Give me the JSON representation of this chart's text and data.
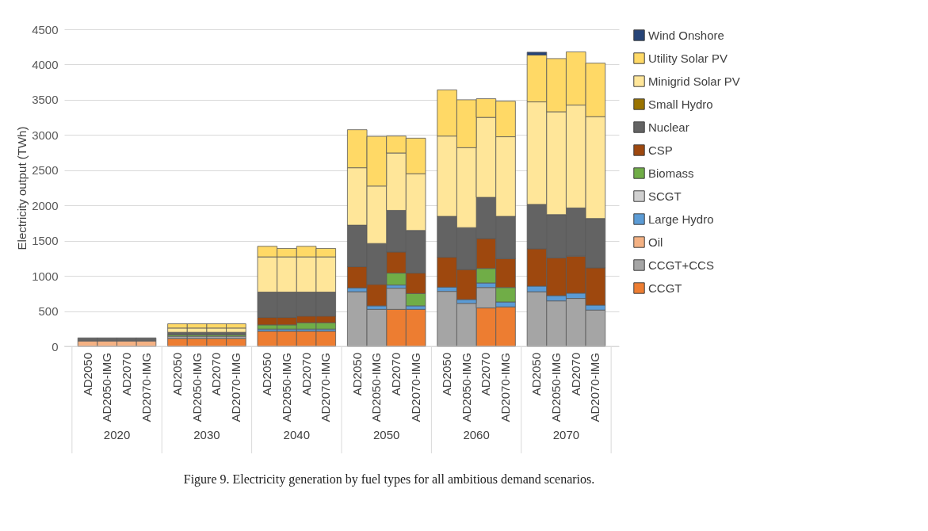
{
  "chart_data": {
    "type": "bar",
    "stacked": true,
    "ylabel": "Electricity output (TWh)",
    "categories": [
      "AD2050",
      "AD2050-IMG",
      "AD2070",
      "AD2070-IMG",
      "AD2050",
      "AD2050-IMG",
      "AD2070",
      "AD2070-IMG",
      "AD2050",
      "AD2050-IMG",
      "AD2070",
      "AD2070-IMG",
      "AD2050",
      "AD2050-IMG",
      "AD2070",
      "AD2070-IMG",
      "AD2050",
      "AD2050-IMG",
      "AD2070",
      "AD2070-IMG",
      "AD2050",
      "AD2050-IMG",
      "AD2070",
      "AD2070-IMG"
    ],
    "ylim": [
      0,
      4500
    ],
    "yticks": [
      0,
      500,
      1000,
      1500,
      2000,
      2500,
      3000,
      3500,
      4000,
      4500
    ],
    "grid": "y",
    "legend": "right",
    "series": [
      {
        "name": "CCGT",
        "color": "#ed7d31",
        "values": [
          null,
          null,
          null,
          null,
          110,
          110,
          110,
          110,
          215,
          215,
          215,
          215,
          null,
          null,
          525,
          525,
          null,
          null,
          545,
          560,
          null,
          null,
          null,
          null
        ]
      },
      {
        "name": "CCGT+CCS",
        "color": "#a5a5a5",
        "values": [
          null,
          null,
          null,
          null,
          35,
          35,
          35,
          35,
          null,
          null,
          null,
          null,
          775,
          525,
          300,
          null,
          780,
          610,
          290,
          null,
          775,
          645,
          680,
          515
        ]
      },
      {
        "name": "Oil",
        "color": "#f4b183",
        "values": [
          75,
          75,
          75,
          75,
          null,
          null,
          null,
          null,
          null,
          null,
          null,
          null,
          null,
          null,
          null,
          null,
          null,
          null,
          null,
          null,
          null,
          null,
          null,
          null
        ]
      },
      {
        "name": "Large Hydro",
        "color": "#5b9bd5",
        "values": [
          null,
          null,
          null,
          null,
          null,
          null,
          null,
          null,
          30,
          30,
          30,
          30,
          55,
          50,
          45,
          50,
          60,
          55,
          65,
          70,
          80,
          75,
          75,
          70
        ]
      },
      {
        "name": "SCGT",
        "color": "#d0d0d0",
        "values": [
          null,
          null,
          null,
          null,
          null,
          null,
          null,
          null,
          null,
          null,
          null,
          null,
          null,
          null,
          null,
          null,
          null,
          null,
          null,
          null,
          null,
          null,
          null,
          null
        ]
      },
      {
        "name": "Biomass",
        "color": "#70ad47",
        "values": [
          null,
          null,
          null,
          null,
          20,
          20,
          20,
          20,
          60,
          60,
          90,
          90,
          null,
          null,
          170,
          175,
          null,
          null,
          205,
          205,
          null,
          null,
          null,
          null
        ]
      },
      {
        "name": "CSP",
        "color": "#9e480e",
        "values": [
          null,
          null,
          null,
          null,
          null,
          null,
          null,
          null,
          105,
          105,
          95,
          95,
          300,
          305,
          300,
          290,
          425,
          425,
          425,
          410,
          530,
          535,
          525,
          530
        ]
      },
      {
        "name": "Nuclear",
        "color": "#636363",
        "values": [
          45,
          45,
          45,
          45,
          35,
          35,
          35,
          35,
          360,
          360,
          340,
          340,
          590,
          580,
          590,
          605,
          580,
          595,
          585,
          600,
          630,
          615,
          685,
          700
        ]
      },
      {
        "name": "Small Hydro",
        "color": "#997300",
        "values": [
          null,
          null,
          null,
          null,
          null,
          null,
          null,
          null,
          null,
          null,
          null,
          null,
          null,
          null,
          null,
          null,
          null,
          null,
          null,
          null,
          null,
          null,
          null,
          null
        ]
      },
      {
        "name": "Minigrid Solar PV",
        "color": "#ffe699",
        "values": [
          null,
          null,
          null,
          null,
          60,
          60,
          60,
          60,
          500,
          500,
          500,
          500,
          815,
          815,
          815,
          805,
          1140,
          1135,
          1135,
          1130,
          1455,
          1460,
          1460,
          1445
        ]
      },
      {
        "name": "Utility Solar PV",
        "color": "#ffd966",
        "values": [
          null,
          null,
          null,
          null,
          60,
          60,
          60,
          60,
          150,
          120,
          150,
          120,
          540,
          705,
          240,
          505,
          655,
          680,
          265,
          505,
          665,
          755,
          755,
          760
        ]
      },
      {
        "name": "Wind Onshore",
        "color": "#264478",
        "values": [
          null,
          null,
          null,
          null,
          null,
          null,
          null,
          null,
          null,
          null,
          null,
          null,
          null,
          null,
          null,
          null,
          null,
          null,
          null,
          null,
          40,
          null,
          null,
          null
        ]
      }
    ],
    "annotations": [
      "2020",
      "2030",
      "2040",
      "2050",
      "2060",
      "2070",
      "Figure 9. Electricity generation by fuel types for all ambitious demand scenarios."
    ]
  }
}
